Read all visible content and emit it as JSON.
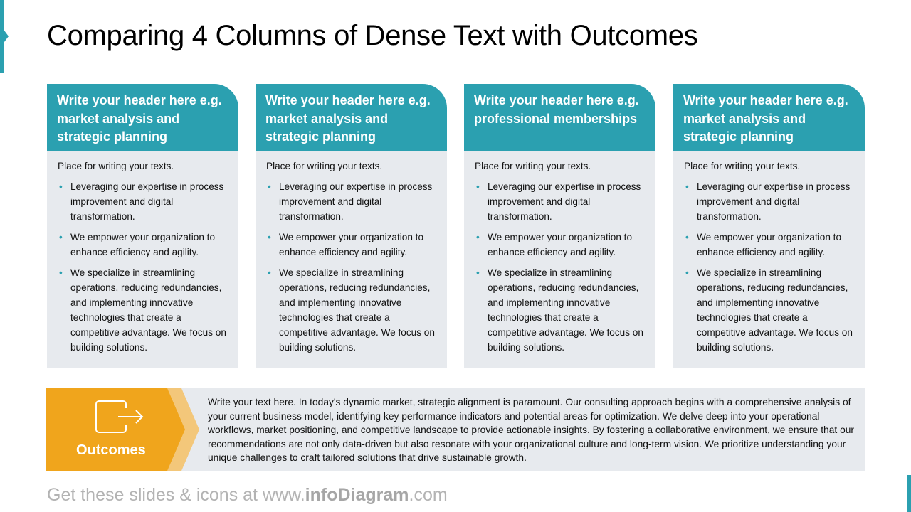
{
  "title": "Comparing 4 Columns of Dense Text with Outcomes",
  "accent_color": "#2ba0b0",
  "outcome_color": "#f0a51c",
  "columns": [
    {
      "header": "Write your header here e.g. market analysis and strategic planning",
      "intro": "Place for writing your texts.",
      "bullets": [
        "Leveraging our expertise in process improvement and digital transformation.",
        "We empower your organization to enhance efficiency and agility.",
        "We specialize in streamlining operations, reducing redundancies, and implementing innovative technologies that create a competitive advantage. We focus on building solutions."
      ]
    },
    {
      "header": "Write your header here e.g. market analysis and strategic planning",
      "intro": "Place for writing your texts.",
      "bullets": [
        "Leveraging our expertise in process improvement and digital transformation.",
        "We empower your organization to enhance efficiency and agility.",
        "We specialize in streamlining operations, reducing redundancies, and implementing innovative technologies that create a competitive advantage. We focus on building solutions."
      ]
    },
    {
      "header": "Write your header here e.g. professional memberships",
      "intro": "Place for writing your texts.",
      "bullets": [
        "Leveraging our expertise in process improvement and digital transformation.",
        "We empower your organization to enhance efficiency and agility.",
        "We specialize in streamlining operations, reducing redundancies, and implementing innovative technologies that create a competitive advantage. We focus on building solutions."
      ]
    },
    {
      "header": "Write your header here e.g. market analysis and strategic planning",
      "intro": "Place for writing your texts.",
      "bullets": [
        "Leveraging our expertise in process improvement and digital transformation.",
        "We empower your organization to enhance efficiency and agility.",
        "We specialize in streamlining operations, reducing redundancies, and implementing innovative technologies that create a competitive advantage. We focus on building solutions."
      ]
    }
  ],
  "outcomes": {
    "label": "Outcomes",
    "icon": "exit-arrow-icon",
    "text": "Write your text here. In today's dynamic market, strategic alignment is paramount. Our consulting approach begins with a comprehensive analysis of your current business model, identifying key performance indicators and potential areas for optimization. We delve deep into your operational workflows, market positioning, and competitive landscape to provide actionable insights. By fostering a collaborative environment, we ensure that our recommendations are not only data-driven but also resonate with your organizational culture and long-term vision. We prioritize understanding your unique challenges to craft tailored solutions that drive sustainable growth."
  },
  "footer": {
    "prefix": "Get these slides & icons at www.",
    "brand": "infoDiagram",
    "suffix": ".com"
  }
}
